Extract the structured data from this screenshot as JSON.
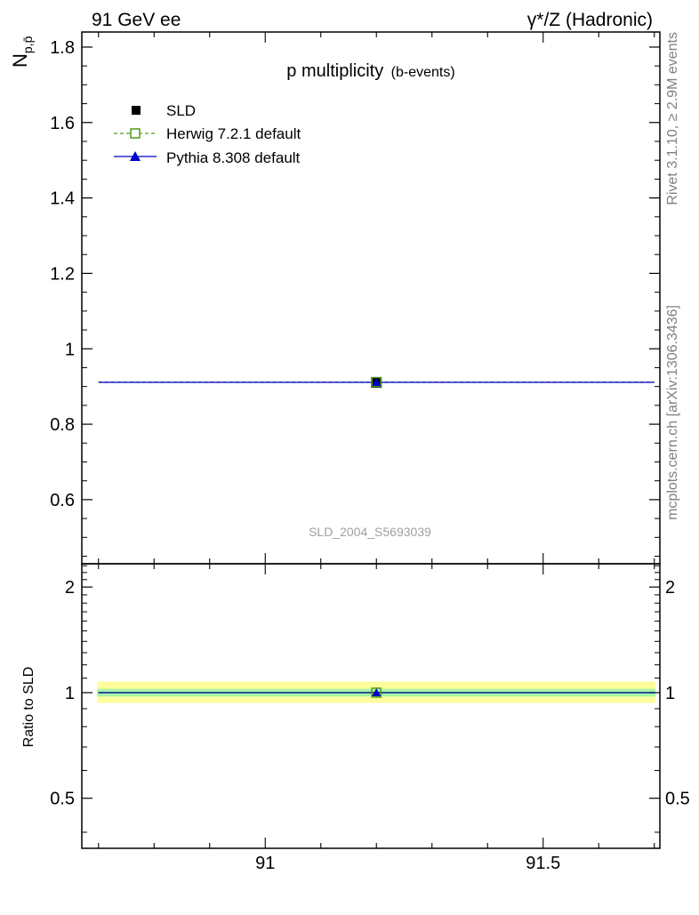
{
  "header": {
    "left": "91 GeV ee",
    "right": "γ*/Z (Hadronic)"
  },
  "side_labels": {
    "rivet": "Rivet 3.1.10, ≥ 2.9M events",
    "mcplots": "mcplots.cern.ch [arXiv:1306.3436]"
  },
  "watermark": "SLD_2004_S5693039",
  "chart_data": [
    {
      "type": "line",
      "title": "p multiplicity",
      "subtitle": "(b-events)",
      "ylabel_main": "N",
      "ylabel_sub": "p,p̄",
      "xlim": [
        90.67,
        91.71
      ],
      "ylim": [
        0.43,
        1.84
      ],
      "yticks": [
        0.6,
        0.8,
        1,
        1.2,
        1.4,
        1.6,
        1.8
      ],
      "ytick_labels": [
        "0.6",
        "0.8",
        "1",
        "1.2",
        "1.4",
        "1.6",
        "1.8"
      ],
      "legend_position": "top-left",
      "series": [
        {
          "name": "SLD",
          "style": "data",
          "marker": "square-filled",
          "color": "#000000",
          "x": [
            91.2
          ],
          "y": [
            0.911
          ],
          "x_range": [
            90.7,
            91.7
          ]
        },
        {
          "name": "Herwig 7.2.1 default",
          "style": "dashed",
          "marker": "square-open",
          "color": "#4f9a1a",
          "x": [
            91.2
          ],
          "y": [
            0.912
          ],
          "x_range": [
            90.7,
            91.7
          ]
        },
        {
          "name": "Pythia 8.308 default",
          "style": "solid",
          "marker": "triangle-filled",
          "color": "#0000cc",
          "x": [
            91.2
          ],
          "y": [
            0.911
          ],
          "x_range": [
            90.7,
            91.7
          ]
        }
      ]
    },
    {
      "type": "line",
      "ylabel": "Ratio to SLD",
      "xlim": [
        90.67,
        91.71
      ],
      "ylim": [
        0.36,
        2.33
      ],
      "yticks": [
        0.5,
        1,
        2
      ],
      "ytick_labels": [
        "0.5",
        "1",
        "2"
      ],
      "xticks": [
        91,
        91.5
      ],
      "xtick_labels": [
        "91",
        "91.5"
      ],
      "bands": [
        {
          "kind": "total uncertainty",
          "color": "#fdfd9c",
          "low": 0.935,
          "high": 1.075
        },
        {
          "kind": "statistical uncertainty",
          "color": "#a6f5a6",
          "low": 0.975,
          "high": 1.025
        }
      ],
      "series": [
        {
          "name": "Herwig 7.2.1 default",
          "color": "#4f9a1a",
          "marker": "square-open",
          "x": [
            91.2
          ],
          "y": [
            1.0
          ]
        },
        {
          "name": "Pythia 8.308 default",
          "color": "#0000cc",
          "marker": "triangle-filled",
          "x": [
            91.2
          ],
          "y": [
            1.0
          ]
        }
      ]
    }
  ]
}
